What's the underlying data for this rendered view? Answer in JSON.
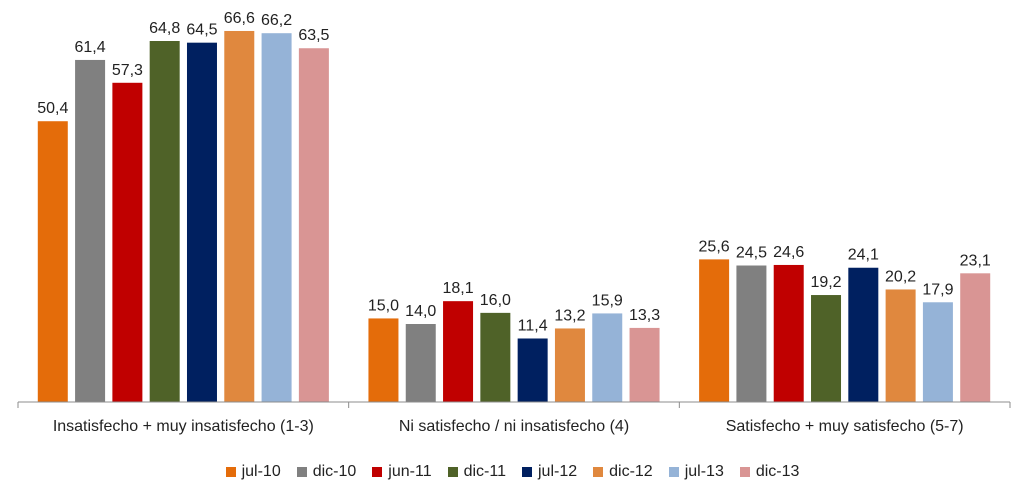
{
  "chart_data": {
    "type": "bar",
    "categories": [
      "Insatisfecho + muy insatisfecho (1-3)",
      "Ni satisfecho / ni insatisfecho (4)",
      "Satisfecho + muy satisfecho (5-7)"
    ],
    "series": [
      {
        "name": "jul-10",
        "color": "#E46C0A",
        "values": [
          50.4,
          15.0,
          25.6
        ],
        "labels": [
          "50,4",
          "15,0",
          "25,6"
        ]
      },
      {
        "name": "dic-10",
        "color": "#808080",
        "values": [
          61.4,
          14.0,
          24.5
        ],
        "labels": [
          "61,4",
          "14,0",
          "24,5"
        ]
      },
      {
        "name": "jun-11",
        "color": "#C00000",
        "values": [
          57.3,
          18.1,
          24.6
        ],
        "labels": [
          "57,3",
          "18,1",
          "24,6"
        ]
      },
      {
        "name": "dic-11",
        "color": "#4F6228",
        "values": [
          64.8,
          16.0,
          19.2
        ],
        "labels": [
          "64,8",
          "16,0",
          "19,2"
        ]
      },
      {
        "name": "jul-12",
        "color": "#002060",
        "values": [
          64.5,
          11.4,
          24.1
        ],
        "labels": [
          "64,5",
          "11,4",
          "24,1"
        ]
      },
      {
        "name": "dic-12",
        "color": "#E0883E",
        "values": [
          66.6,
          13.2,
          20.2
        ],
        "labels": [
          "66,6",
          "13,2",
          "20,2"
        ]
      },
      {
        "name": "jul-13",
        "color": "#95B3D7",
        "values": [
          66.2,
          15.9,
          17.9
        ],
        "labels": [
          "66,2",
          "15,9",
          "17,9"
        ]
      },
      {
        "name": "dic-13",
        "color": "#D99594",
        "values": [
          63.5,
          13.3,
          23.1
        ],
        "labels": [
          "63,5",
          "13,3",
          "23,1"
        ]
      }
    ],
    "ylim": [
      0,
      70
    ],
    "legend": "bottom",
    "grid": false
  }
}
